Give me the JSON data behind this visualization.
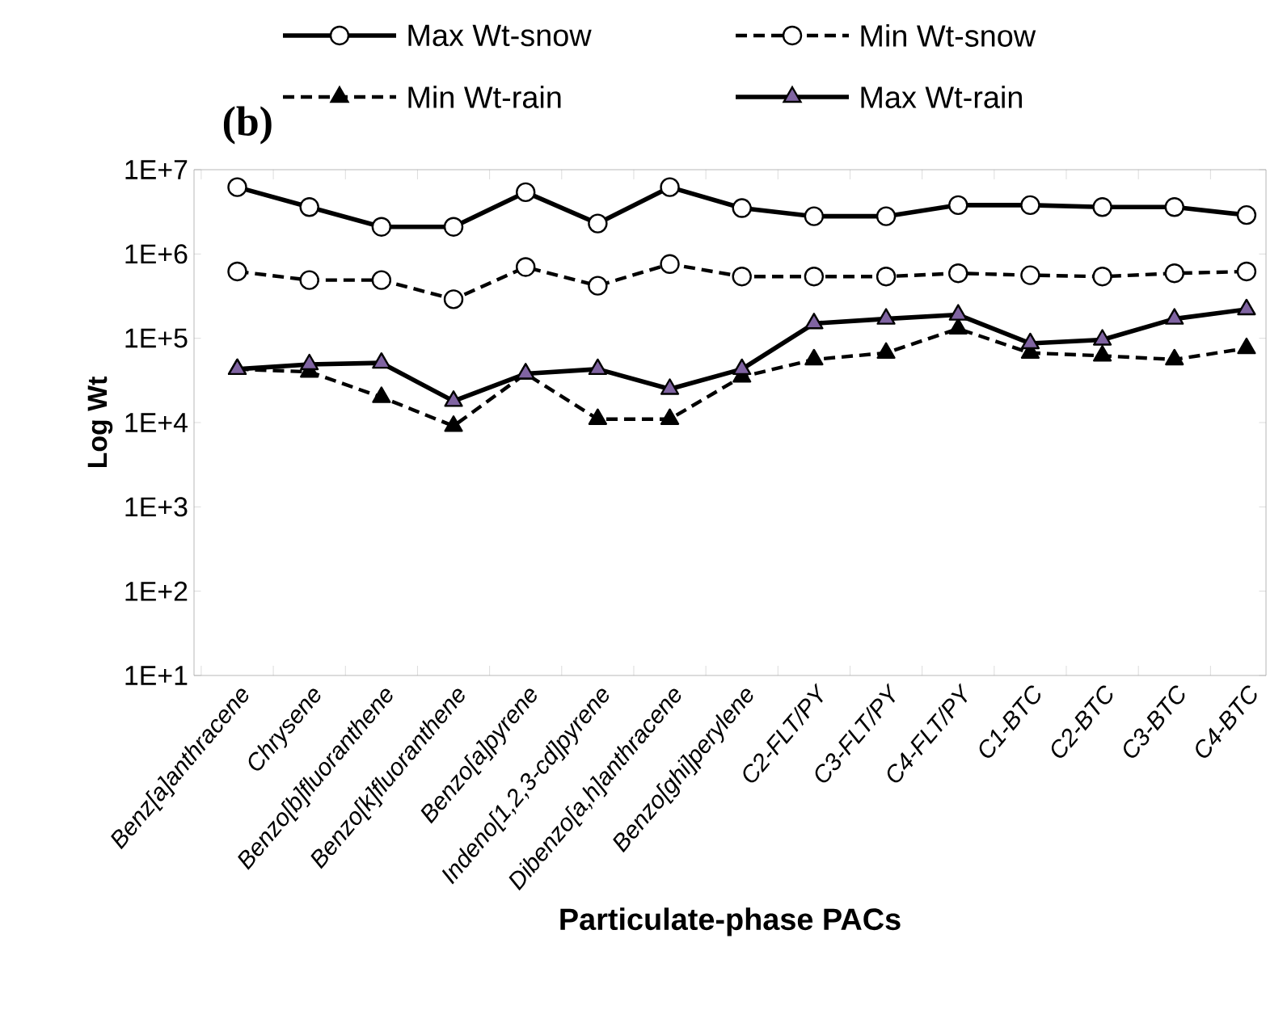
{
  "chart_data": {
    "type": "line",
    "title": "(b)",
    "xlabel": "Particulate-phase PACs",
    "ylabel": "Log Wt",
    "categories": [
      "Benz[a]anthracene",
      "Chrysene",
      "Benzo[b]fluoranthene",
      "Benzo[k]fluoranthene",
      "Benzo[a]pyrene",
      "Indeno[1,2,3-cd]pyrene",
      "Dibenzo[a,h]anthracene",
      "Benzo[ghi]perylene",
      "C2-FLT/PY",
      "C3-FLT/PY",
      "C4-FLT/PY",
      "C1-BTC",
      "C2-BTC",
      "C3-BTC",
      "C4-BTC"
    ],
    "log": "y",
    "ylim": [
      10,
      10000000
    ],
    "yticks": [
      {
        "value": 10,
        "label": "1E+1"
      },
      {
        "value": 100,
        "label": "1E+2"
      },
      {
        "value": 1000,
        "label": "1E+3"
      },
      {
        "value": 10000,
        "label": "1E+4"
      },
      {
        "value": 100000,
        "label": "1E+5"
      },
      {
        "value": 1000000,
        "label": "1E+6"
      },
      {
        "value": 10000000,
        "label": "1E+7"
      }
    ],
    "legend": "top",
    "grid": false,
    "series": [
      {
        "name": "Max Wt-snow",
        "color": "#ffffff",
        "marker": "circle",
        "line_style": "solid",
        "values": [
          6200000,
          3600000,
          2100000,
          2100000,
          5400000,
          2300000,
          6200000,
          3500000,
          2800000,
          2800000,
          3800000,
          3800000,
          3600000,
          3600000,
          2900000
        ]
      },
      {
        "name": "Min Wt-snow",
        "color": "#ffffff",
        "marker": "circle",
        "line_style": "dashed",
        "values": [
          620000,
          490000,
          490000,
          290000,
          700000,
          420000,
          760000,
          540000,
          540000,
          540000,
          590000,
          560000,
          540000,
          590000,
          620000
        ]
      },
      {
        "name": "Min Wt-rain",
        "color": "#000000",
        "marker": "triangle",
        "line_style": "dashed",
        "values": [
          43000,
          40000,
          20000,
          9100,
          38000,
          11000,
          11000,
          35000,
          56000,
          67000,
          130000,
          67000,
          62000,
          56000,
          76000
        ]
      },
      {
        "name": "Max Wt-rain",
        "color": "#8064a2",
        "marker": "triangle",
        "line_style": "solid",
        "values": [
          43000,
          49000,
          51000,
          18000,
          38000,
          43000,
          25000,
          43000,
          150000,
          170000,
          190000,
          87000,
          96000,
          170000,
          220000
        ]
      }
    ]
  }
}
